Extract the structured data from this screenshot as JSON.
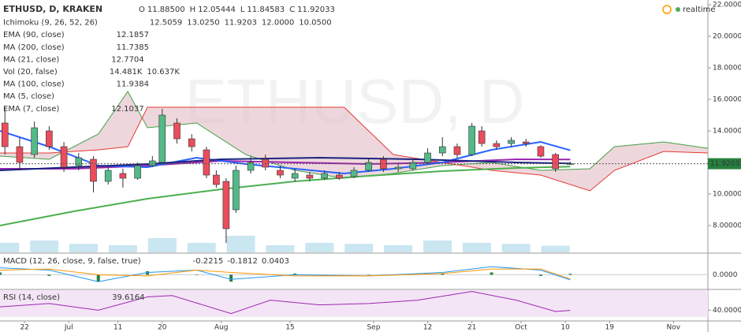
{
  "chart_data": {
    "type": "candlestick",
    "title": "ETHUSD, D, KRAKEN",
    "watermark": "ETHUSD, D",
    "status": "realtime",
    "ohlc": [
      {
        "label": "O",
        "value": "11.88500"
      },
      {
        "label": "H",
        "value": "12.05444"
      },
      {
        "label": "L",
        "value": "11.84583"
      },
      {
        "label": "C",
        "value": "11.92033"
      }
    ],
    "last_price": {
      "value": 11.92033,
      "label": "11.92033"
    },
    "up_color": "#53b987",
    "down_color": "#eb4d5c",
    "xlim": [
      -5,
      139
    ],
    "xticks": [
      {
        "value": 0,
        "label": "22"
      },
      {
        "value": 9,
        "label": "Jul"
      },
      {
        "value": 19,
        "label": "11"
      },
      {
        "value": 28,
        "label": "20"
      },
      {
        "value": 40,
        "label": "Aug"
      },
      {
        "value": 54,
        "label": "15"
      },
      {
        "value": 71,
        "label": "Sep"
      },
      {
        "value": 82,
        "label": "12"
      },
      {
        "value": 91,
        "label": "21"
      },
      {
        "value": 101,
        "label": "Oct"
      },
      {
        "value": 110,
        "label": "10"
      },
      {
        "value": 119,
        "label": "19"
      },
      {
        "value": 132,
        "label": "Nov"
      }
    ],
    "ylim": [
      6.3,
      22.3
    ],
    "yticks": [
      {
        "value": 8,
        "label": "8.00000"
      },
      {
        "value": 10,
        "label": "10.00000"
      },
      {
        "value": 12,
        "label": "12.00000"
      },
      {
        "value": 14,
        "label": "14.00000"
      },
      {
        "value": 16,
        "label": "16.00000"
      },
      {
        "value": 18,
        "label": "18.00000"
      },
      {
        "value": 20,
        "label": "20.00000"
      },
      {
        "value": 22,
        "label": "22.00000"
      }
    ],
    "x": [
      -4,
      -1,
      2,
      5,
      8,
      11,
      14,
      17,
      20,
      23,
      26,
      28,
      31,
      34,
      37,
      39,
      41,
      43,
      46,
      49,
      52,
      55,
      58,
      61,
      64,
      67,
      70,
      73,
      76,
      79,
      82,
      85,
      88,
      91,
      93,
      96,
      99,
      102,
      105,
      108,
      111
    ],
    "open": [
      14.5,
      13.0,
      12.5,
      14.0,
      13.0,
      11.8,
      12.2,
      10.8,
      11.3,
      11.0,
      11.8,
      12.0,
      14.5,
      13.5,
      12.8,
      11.2,
      10.8,
      9.0,
      11.5,
      12.2,
      11.5,
      11.0,
      11.2,
      11.0,
      11.2,
      11.1,
      11.5,
      12.2,
      11.6,
      11.6,
      12.0,
      12.6,
      13.0,
      12.5,
      14.0,
      13.2,
      13.2,
      13.3,
      13.0,
      12.5,
      11.885
    ],
    "high": [
      15.5,
      13.6,
      14.6,
      14.3,
      13.3,
      12.6,
      12.4,
      11.8,
      11.6,
      12.0,
      12.4,
      15.4,
      14.8,
      13.8,
      13.0,
      11.5,
      11.0,
      11.8,
      12.4,
      12.5,
      11.8,
      11.6,
      11.4,
      11.5,
      11.4,
      11.7,
      12.3,
      12.4,
      11.9,
      12.2,
      12.9,
      13.6,
      13.2,
      14.5,
      14.3,
      13.4,
      13.6,
      13.5,
      13.1,
      12.6,
      12.05
    ],
    "low": [
      12.5,
      11.5,
      12.3,
      12.8,
      11.4,
      11.5,
      10.1,
      10.6,
      10.4,
      10.9,
      11.7,
      11.9,
      13.2,
      12.7,
      11.0,
      10.4,
      6.9,
      8.8,
      11.3,
      11.5,
      11.0,
      10.8,
      10.8,
      10.9,
      10.9,
      11.0,
      11.4,
      11.4,
      11.4,
      11.5,
      11.9,
      12.4,
      12.3,
      12.4,
      13.0,
      12.8,
      13.0,
      13.0,
      12.3,
      11.4,
      11.85
    ],
    "close": [
      13.0,
      12.0,
      14.2,
      13.0,
      11.7,
      12.3,
      10.8,
      11.5,
      11.0,
      11.8,
      12.1,
      15.0,
      13.5,
      13.0,
      11.2,
      10.6,
      7.8,
      11.5,
      12.0,
      11.7,
      11.2,
      11.3,
      11.0,
      11.3,
      11.0,
      11.5,
      12.0,
      11.6,
      11.7,
      12.0,
      12.6,
      13.0,
      12.5,
      14.3,
      13.2,
      13.0,
      13.4,
      13.2,
      12.4,
      11.6,
      11.92
    ],
    "studies": [
      {
        "kind": "ichimoku",
        "name": "Ichimoku (9, 26, 52, 26)",
        "last": [
          "12.5059",
          "13.0250",
          "11.9203",
          "12.0000",
          "10.0500"
        ],
        "last_colors": [
          "#2196f3",
          "#c62828",
          "#43a047",
          "#43a047",
          "#e53935"
        ],
        "x": [
          -5,
          5,
          15,
          21,
          25,
          35,
          45,
          55,
          65,
          75,
          85,
          95,
          105,
          115,
          120,
          130,
          139
        ],
        "span_a": [
          12.4,
          12.2,
          13.8,
          16.5,
          14.2,
          14.5,
          12.5,
          11.5,
          11.0,
          11.3,
          11.8,
          12.0,
          11.5,
          11.6,
          13.0,
          13.3,
          12.9
        ],
        "span_b": [
          12.6,
          12.6,
          12.8,
          13.0,
          15.5,
          15.5,
          15.5,
          15.5,
          15.5,
          12.5,
          12.0,
          11.5,
          11.2,
          10.2,
          11.5,
          12.7,
          12.6
        ],
        "span_a_color": "#43a047",
        "span_b_color": "#e53935",
        "cloud_color": "#e7c6cd"
      },
      {
        "kind": "line",
        "name": "EMA (90, close)",
        "last": [
          "12.1857"
        ],
        "color": "#9c27b0",
        "x": [
          -5,
          10,
          25,
          40,
          55,
          70,
          85,
          100,
          111
        ],
        "values": [
          11.6,
          11.6,
          11.8,
          12.1,
          12.0,
          11.9,
          12.0,
          12.2,
          12.19
        ]
      },
      {
        "kind": "line",
        "name": "MA (200, close)",
        "last": [
          "11.7385"
        ],
        "color": "#4caf50",
        "x": [
          -5,
          10,
          25,
          40,
          55,
          70,
          85,
          100,
          111
        ],
        "values": [
          8.0,
          8.9,
          9.7,
          10.3,
          10.8,
          11.15,
          11.45,
          11.65,
          11.74
        ]
      },
      {
        "kind": "line",
        "name": "MA (21, close)",
        "last": [
          "12.7704"
        ],
        "color": "#2962ff",
        "x": [
          -5,
          5,
          15,
          25,
          35,
          45,
          55,
          65,
          75,
          85,
          95,
          105,
          111
        ],
        "values": [
          14.0,
          13.0,
          11.8,
          11.7,
          12.3,
          11.9,
          11.6,
          11.3,
          11.6,
          12.0,
          12.8,
          13.3,
          12.77
        ]
      },
      {
        "kind": "volume",
        "name": "Vol (20, false)",
        "last": [
          "14.481K",
          "10.637K"
        ],
        "last_colors": [
          "#43a047",
          "#1e88e5"
        ],
        "color": "#a5d6e8",
        "x": [
          -4,
          4,
          12,
          20,
          28,
          36,
          44,
          52,
          60,
          68,
          76,
          84,
          92,
          100,
          108
        ],
        "values": [
          20,
          25,
          18,
          15,
          30,
          20,
          35,
          15,
          20,
          18,
          15,
          25,
          20,
          18,
          14
        ]
      },
      {
        "kind": "line",
        "name": "MA (100, close)",
        "last": [
          "11.9384"
        ],
        "color": "#1a237e",
        "x": [
          -5,
          10,
          25,
          40,
          60,
          80,
          100,
          111
        ],
        "values": [
          11.5,
          11.7,
          11.9,
          12.2,
          12.3,
          12.2,
          12.0,
          11.94
        ]
      },
      {
        "kind": "hidden",
        "name": "MA (5, close)"
      },
      {
        "kind": "text",
        "name": "EMA (7, close)",
        "last": [
          "12.1037"
        ],
        "last_colors": [
          "#2196f3"
        ]
      }
    ],
    "macd": {
      "name": "MACD (12, 26, close, 9, false, true)",
      "last": [
        -0.2215,
        -0.1812,
        0.0403
      ],
      "last_colors": [
        "#2196f3",
        "#2196f3",
        "#ff9800"
      ],
      "ylim": [
        -0.6,
        0.9
      ],
      "yticks": [
        {
          "value": 0,
          "label": "0.0000"
        }
      ],
      "x": [
        -5,
        5,
        15,
        25,
        35,
        42,
        55,
        70,
        85,
        95,
        105,
        111
      ],
      "macd": [
        0.3,
        0.2,
        -0.3,
        0.1,
        0.2,
        -0.2,
        0.0,
        -0.05,
        0.1,
        0.35,
        0.2,
        -0.22
      ],
      "signal": [
        0.2,
        0.25,
        0.0,
        -0.05,
        0.2,
        0.1,
        -0.05,
        -0.05,
        0.05,
        0.25,
        0.25,
        -0.18
      ],
      "histogram": [
        0.1,
        -0.05,
        -0.3,
        0.15,
        0.0,
        -0.3,
        0.05,
        0.0,
        0.05,
        0.1,
        -0.05,
        0.04
      ],
      "macd_color": "#2196f3",
      "signal_color": "#ff9800",
      "hist_color": "#26803f"
    },
    "rsi": {
      "name": "RSI (14, close)",
      "last": [
        39.6164
      ],
      "last_colors": [
        "#9c27b0"
      ],
      "color": "#9c27b0",
      "ylim": [
        25,
        70
      ],
      "yticks": [
        {
          "value": 40,
          "label": "40.0000"
        }
      ],
      "band": [
        30,
        70
      ],
      "band_color": "#f3e5f5",
      "x": [
        -5,
        5,
        15,
        25,
        30,
        42,
        50,
        60,
        70,
        80,
        91,
        100,
        108,
        111
      ],
      "values": [
        45,
        50,
        40,
        60,
        62,
        35,
        55,
        48,
        50,
        55,
        68,
        55,
        38,
        39.6164
      ]
    }
  }
}
